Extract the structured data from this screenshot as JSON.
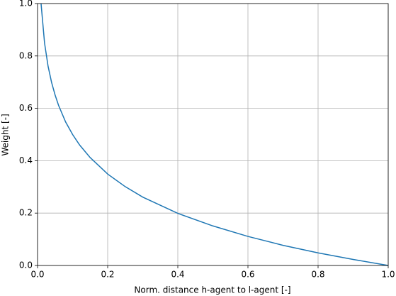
{
  "chart_data": {
    "type": "line",
    "x_label": "Norm. distance h-agent to l-agent [-]",
    "y_label": "Weight [-]",
    "x": [
      0.01,
      0.02,
      0.03,
      0.04,
      0.05,
      0.06,
      0.08,
      0.1,
      0.12,
      0.15,
      0.2,
      0.25,
      0.3,
      0.4,
      0.5,
      0.6,
      0.7,
      0.8,
      0.9,
      1.0
    ],
    "series": [
      {
        "color": "#1f77b4",
        "values": [
          1.0,
          0.849,
          0.761,
          0.699,
          0.651,
          0.611,
          0.548,
          0.5,
          0.46,
          0.412,
          0.349,
          0.301,
          0.261,
          0.199,
          0.151,
          0.111,
          0.077,
          0.048,
          0.023,
          0.0
        ]
      }
    ],
    "xlim": [
      0,
      1
    ],
    "ylim": [
      0,
      1
    ],
    "xticks": [
      {
        "value": 0,
        "label": "0.0"
      },
      0.2,
      0.4,
      0.6,
      0.8,
      {
        "value": 1,
        "label": "1.0"
      }
    ],
    "yticks": [
      {
        "value": 0,
        "label": "0.0"
      },
      0.2,
      0.4,
      0.6,
      0.8,
      {
        "value": 1,
        "label": "1.0"
      }
    ],
    "grid": true
  }
}
